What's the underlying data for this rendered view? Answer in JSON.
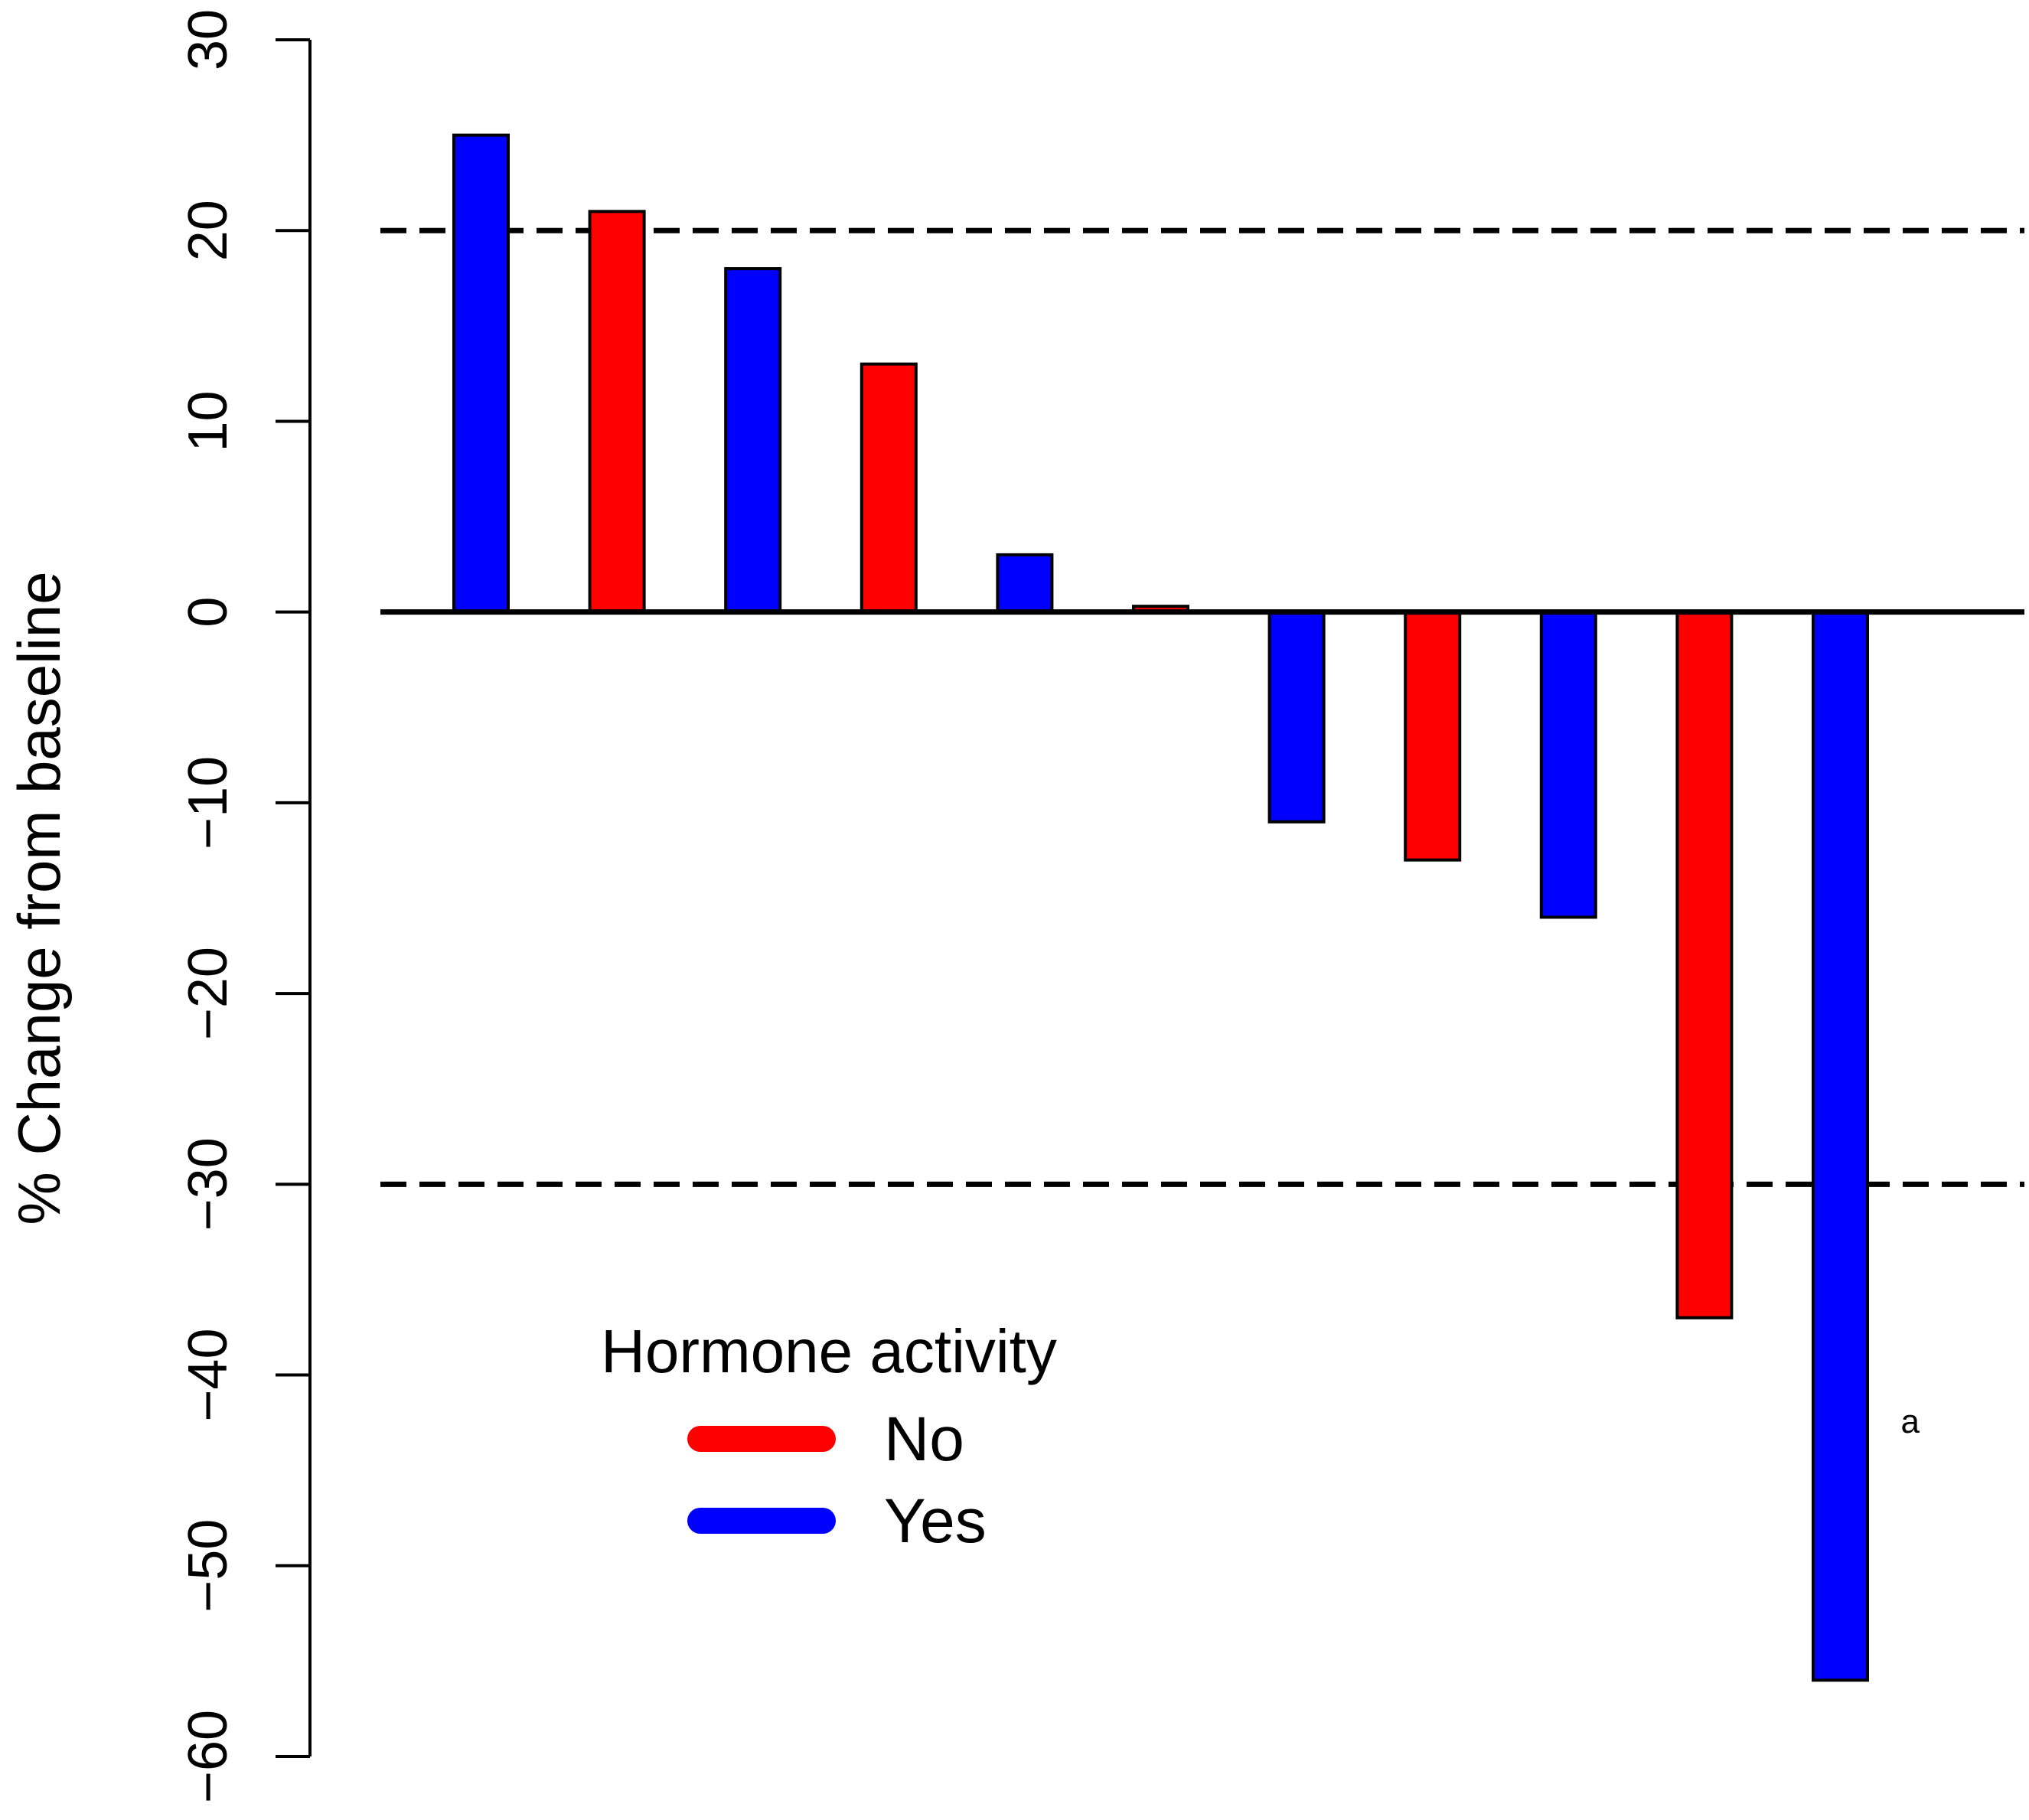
{
  "chart_data": {
    "type": "bar",
    "title": "",
    "xlabel": "",
    "ylabel": "% Change from baseline",
    "ylim": [
      -60,
      30
    ],
    "yticks": [
      30,
      20,
      10,
      0,
      -10,
      -20,
      -30,
      -40,
      -50,
      -60
    ],
    "ytick_labels": [
      "30",
      "20",
      "10",
      "0",
      "−10",
      "−20",
      "−30",
      "−40",
      "−50",
      "−60"
    ],
    "reference_lines": [
      20,
      -30
    ],
    "values": [
      25,
      21,
      18,
      13,
      3,
      0.3,
      -11,
      -13,
      -16,
      -37,
      -56
    ],
    "groups": [
      "Yes",
      "No",
      "Yes",
      "No",
      "Yes",
      "No",
      "Yes",
      "No",
      "Yes",
      "No",
      "Yes"
    ],
    "colors": {
      "No": "#ff0000",
      "Yes": "#0000ff"
    },
    "legend": {
      "title": "Hormone activity",
      "entries": [
        {
          "label": "No",
          "color": "#ff0000"
        },
        {
          "label": "Yes",
          "color": "#0000ff"
        }
      ],
      "placement": "bottom-left"
    },
    "annotations": [
      {
        "text": "a",
        "bar_index": 10
      }
    ]
  }
}
